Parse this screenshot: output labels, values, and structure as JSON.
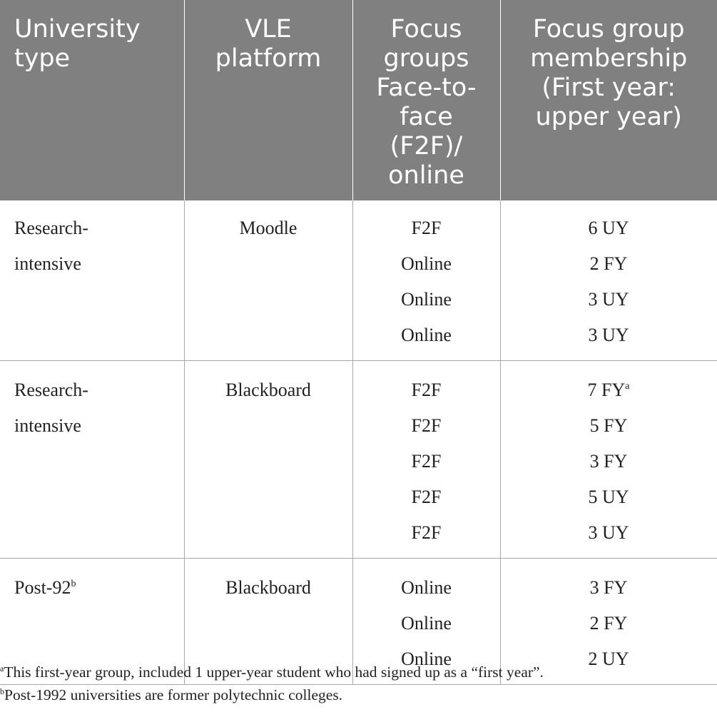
{
  "headers": [
    "University type",
    "VLE platform",
    "Focus groups Face-to-face (F2F)/ online",
    "Focus group membership (First year: upper year)"
  ],
  "rows": [
    {
      "university_type": "Research-intensive",
      "university_type_lines": [
        "Research-",
        "intensive"
      ],
      "university_type_sup": "",
      "vle_platform": "Moodle",
      "groups": [
        {
          "mode": "F2F",
          "membership": "6 UY",
          "sup": ""
        },
        {
          "mode": "Online",
          "membership": "2 FY",
          "sup": ""
        },
        {
          "mode": "Online",
          "membership": "3 UY",
          "sup": ""
        },
        {
          "mode": "Online",
          "membership": "3 UY",
          "sup": ""
        }
      ]
    },
    {
      "university_type": "Research-intensive",
      "university_type_lines": [
        "Research-",
        "intensive"
      ],
      "university_type_sup": "",
      "vle_platform": "Blackboard",
      "groups": [
        {
          "mode": "F2F",
          "membership": "7 FY",
          "sup": "a"
        },
        {
          "mode": "F2F",
          "membership": "5 FY",
          "sup": ""
        },
        {
          "mode": "F2F",
          "membership": "3 FY",
          "sup": ""
        },
        {
          "mode": "F2F",
          "membership": "5 UY",
          "sup": ""
        },
        {
          "mode": "F2F",
          "membership": "3 UY",
          "sup": ""
        }
      ]
    },
    {
      "university_type": "Post-92",
      "university_type_lines": [
        "Post-92"
      ],
      "university_type_sup": "b",
      "vle_platform": "Blackboard",
      "groups": [
        {
          "mode": "Online",
          "membership": "3 FY",
          "sup": ""
        },
        {
          "mode": "Online",
          "membership": "2 FY",
          "sup": ""
        },
        {
          "mode": "Online",
          "membership": "2 UY",
          "sup": ""
        }
      ]
    }
  ],
  "footnotes": [
    {
      "marker": "a",
      "text": "This first-year group, included 1 upper-year student who had signed up as a “first year”."
    },
    {
      "marker": "b",
      "text": "Post-1992 universities are former polytechnic colleges."
    }
  ]
}
